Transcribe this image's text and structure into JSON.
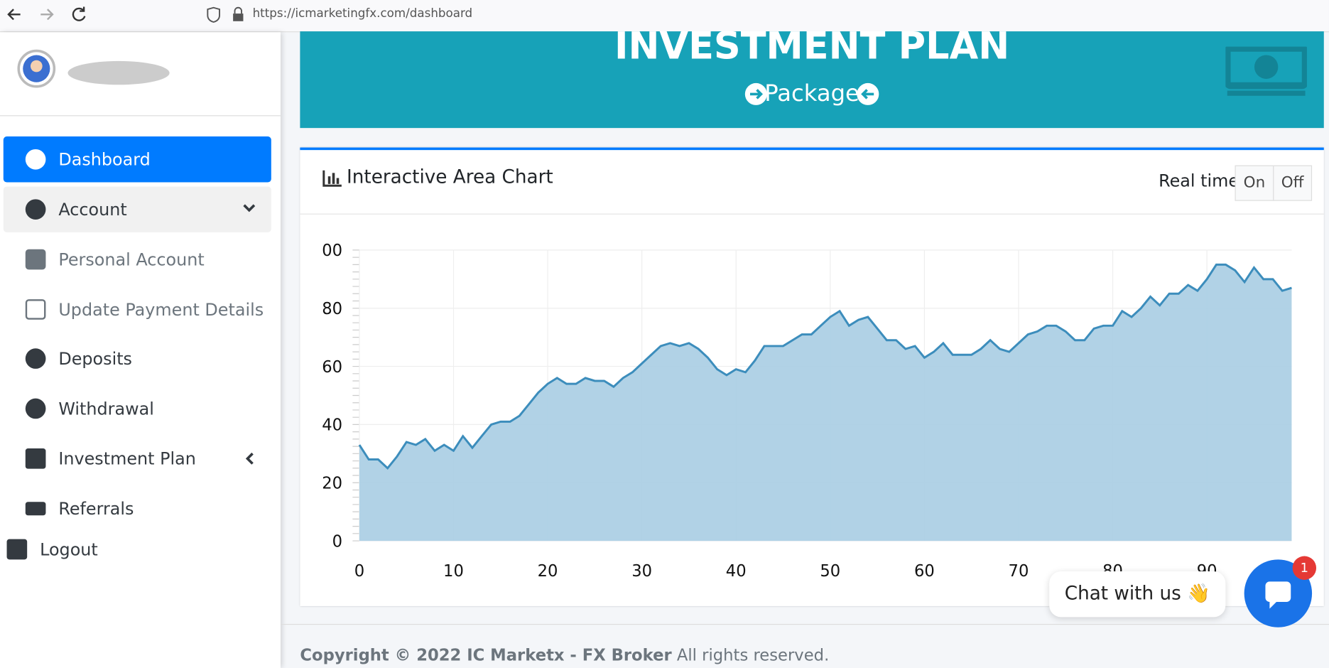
{
  "browser": {
    "url": "https://icmarketingfx.com/dashboard"
  },
  "sidebar": {
    "items": [
      "Dashboard",
      "Account",
      "Personal Account",
      "Update Payment Details",
      "Deposits",
      "Withdrawal",
      "Investment Plan",
      "Referrals",
      "Logout"
    ]
  },
  "header": {
    "title": "INVESTMENT PLAN",
    "subtitle": "Package"
  },
  "card": {
    "title": "Interactive Area Chart",
    "realtime_label": "Real time",
    "toggle": [
      "On",
      "Off"
    ]
  },
  "chart_data": {
    "type": "area",
    "color": "#3c8dbc",
    "fill": "#a9cde3",
    "grid": true,
    "x": [
      0,
      1,
      2,
      3,
      4,
      5,
      6,
      7,
      8,
      9,
      10,
      11,
      12,
      13,
      14,
      15,
      16,
      17,
      18,
      19,
      20,
      21,
      22,
      23,
      24,
      25,
      26,
      27,
      28,
      29,
      30,
      31,
      32,
      33,
      34,
      35,
      36,
      37,
      38,
      39,
      40,
      41,
      42,
      43,
      44,
      45,
      46,
      47,
      48,
      49,
      50,
      51,
      52,
      53,
      54,
      55,
      56,
      57,
      58,
      59,
      60,
      61,
      62,
      63,
      64,
      65,
      66,
      67,
      68,
      69,
      70,
      71,
      72,
      73,
      74,
      75,
      76,
      77,
      78,
      79,
      80,
      81,
      82,
      83,
      84,
      85,
      86,
      87,
      88,
      89,
      90,
      91,
      92,
      93,
      94,
      95,
      96,
      97,
      98,
      99
    ],
    "values": [
      33,
      28,
      28,
      25,
      29,
      34,
      33,
      35,
      31,
      33,
      31,
      36,
      32,
      36,
      40,
      41,
      41,
      43,
      47,
      51,
      54,
      56,
      54,
      54,
      56,
      55,
      55,
      53,
      56,
      58,
      61,
      64,
      67,
      68,
      67,
      68,
      66,
      63,
      59,
      57,
      59,
      58,
      62,
      67,
      67,
      67,
      69,
      71,
      71,
      74,
      77,
      79,
      74,
      76,
      77,
      73,
      69,
      69,
      66,
      67,
      63,
      65,
      68,
      64,
      64,
      64,
      66,
      69,
      66,
      65,
      68,
      71,
      72,
      74,
      74,
      72,
      69,
      69,
      73,
      74,
      74,
      79,
      77,
      80,
      84,
      81,
      85,
      85,
      88,
      86,
      90,
      95,
      95,
      93,
      89,
      94,
      90,
      90,
      86,
      87
    ],
    "xlim": [
      0,
      99
    ],
    "xticks": [
      0,
      10,
      20,
      30,
      40,
      50,
      60,
      70,
      80,
      90
    ],
    "ylim": [
      0,
      100
    ],
    "yticks": [
      0,
      20,
      40,
      60,
      80,
      {
        "value": 100,
        "label": "00"
      }
    ]
  },
  "chat": {
    "label": "Chat with us 👋",
    "badge": "1"
  },
  "footer": {
    "copyright": "Copyright © 2022 IC Marketx - FX Broker",
    "rights": "All rights reserved."
  }
}
